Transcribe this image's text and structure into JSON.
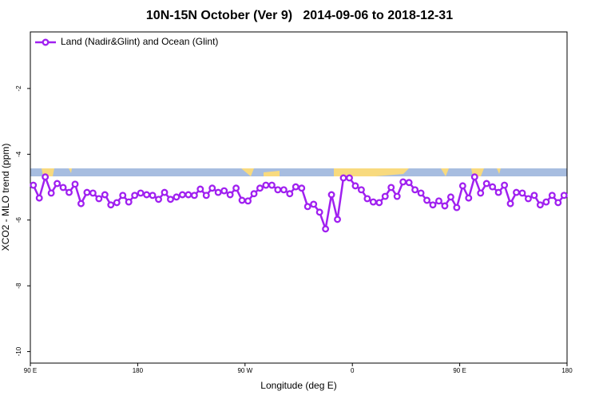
{
  "chart_data": {
    "type": "line",
    "title": "10N-15N October (Ver 9)   2014-09-06 to 2018-12-31",
    "xlabel": "Longitude (deg E)",
    "ylabel": "XCO2 - MLO trend (ppm)",
    "x": [
      92.5,
      97.5,
      102.5,
      107.5,
      112.5,
      117.5,
      122.5,
      127.5,
      132.5,
      137.5,
      142.5,
      147.5,
      152.5,
      157.5,
      162.5,
      167.5,
      172.5,
      177.5,
      182.5,
      187.5,
      192.5,
      197.5,
      202.5,
      207.5,
      212.5,
      217.5,
      222.5,
      227.5,
      232.5,
      237.5,
      242.5,
      247.5,
      252.5,
      257.5,
      262.5,
      267.5,
      272.5,
      277.5,
      282.5,
      287.5,
      292.5,
      297.5,
      302.5,
      307.5,
      312.5,
      317.5,
      322.5,
      327.5,
      332.5,
      337.5,
      342.5,
      347.5,
      352.5,
      357.5,
      362.5,
      367.5,
      372.5,
      377.5,
      382.5,
      387.5,
      392.5,
      397.5,
      402.5,
      407.5,
      412.5,
      417.5,
      422.5,
      427.5,
      432.5,
      437.5,
      442.5,
      447.5,
      452.5,
      457.5,
      462.5,
      467.5,
      472.5,
      477.5,
      482.5,
      487.5,
      492.5,
      497.5,
      502.5,
      507.5,
      512.5,
      517.5,
      522.5,
      527.5,
      532.5,
      537.5
    ],
    "series": [
      {
        "name": "Land (Nadir&Glint) and Ocean (Glint)",
        "color": "#a020f0",
        "values": [
          -4.94,
          -5.33,
          -4.69,
          -5.18,
          -4.89,
          -5.01,
          -5.16,
          -4.91,
          -5.5,
          -5.16,
          -5.18,
          -5.35,
          -5.23,
          -5.54,
          -5.47,
          -5.25,
          -5.45,
          -5.25,
          -5.18,
          -5.23,
          -5.25,
          -5.37,
          -5.16,
          -5.37,
          -5.3,
          -5.23,
          -5.23,
          -5.25,
          -5.06,
          -5.25,
          -5.03,
          -5.16,
          -5.11,
          -5.23,
          -5.03,
          -5.4,
          -5.42,
          -5.2,
          -5.03,
          -4.94,
          -4.94,
          -5.08,
          -5.08,
          -5.2,
          -4.99,
          -5.03,
          -5.59,
          -5.52,
          -5.76,
          -6.27,
          -5.23,
          -5.98,
          -4.72,
          -4.72,
          -4.96,
          -5.08,
          -5.35,
          -5.45,
          -5.47,
          -5.28,
          -5.01,
          -5.28,
          -4.84,
          -4.86,
          -5.08,
          -5.18,
          -5.4,
          -5.54,
          -5.42,
          -5.57,
          -5.3,
          -5.62,
          -4.96,
          -5.33,
          -4.69,
          -5.18,
          -4.89,
          -4.99,
          -5.16,
          -4.94,
          -5.5,
          -5.16,
          -5.18,
          -5.35,
          -5.25,
          -5.54,
          -5.45,
          -5.25,
          -5.47,
          -5.25
        ]
      }
    ],
    "xlim": [
      90,
      540
    ],
    "xticks": [
      {
        "value": 90,
        "label": "90 E"
      },
      180,
      {
        "value": 270,
        "label": "90 W"
      },
      {
        "value": 360,
        "label": "0"
      },
      {
        "value": 450,
        "label": "90 E"
      },
      {
        "value": 540,
        "label": "180"
      }
    ],
    "ylim": [
      -10.35,
      -0.28
    ],
    "yticks": [
      -10,
      -8,
      -6,
      -4,
      -2
    ],
    "legend": "topleft"
  }
}
